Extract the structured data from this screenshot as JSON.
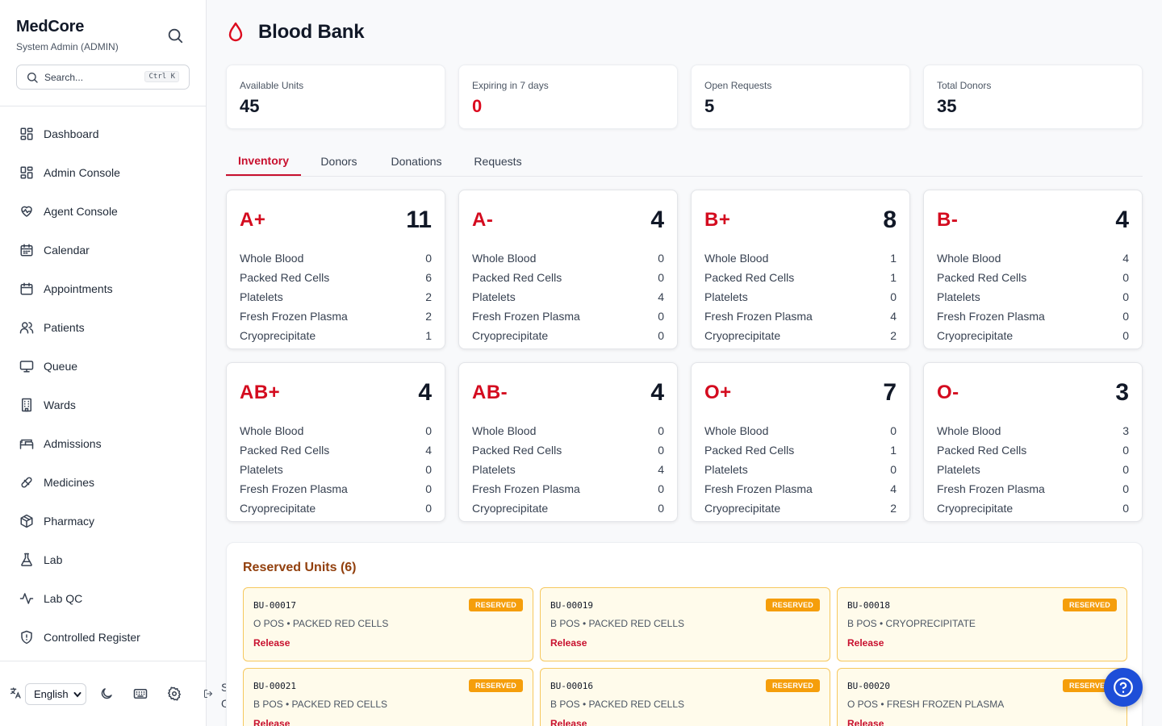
{
  "sidebar": {
    "brand": "MedCore",
    "user": "System Admin (ADMIN)",
    "search_placeholder": "Search...",
    "search_shortcut": "Ctrl K",
    "nav": [
      {
        "label": "Dashboard",
        "icon": "dashboard-icon"
      },
      {
        "label": "Admin Console",
        "icon": "dashboard-icon"
      },
      {
        "label": "Agent Console",
        "icon": "heart-pulse-icon"
      },
      {
        "label": "Calendar",
        "icon": "calendar-icon"
      },
      {
        "label": "Appointments",
        "icon": "calendar-icon"
      },
      {
        "label": "Patients",
        "icon": "users-icon"
      },
      {
        "label": "Queue",
        "icon": "monitor-icon"
      },
      {
        "label": "Wards",
        "icon": "building-icon"
      },
      {
        "label": "Admissions",
        "icon": "bed-icon"
      },
      {
        "label": "Medicines",
        "icon": "pill-icon"
      },
      {
        "label": "Pharmacy",
        "icon": "package-icon"
      },
      {
        "label": "Lab",
        "icon": "flask-icon"
      },
      {
        "label": "Lab QC",
        "icon": "activity-icon"
      },
      {
        "label": "Controlled Register",
        "icon": "shield-icon"
      }
    ],
    "footer": {
      "language": "English",
      "sign_out_line1": "Sign",
      "sign_out_line2": "Out"
    }
  },
  "page": {
    "title": "Blood Bank"
  },
  "stats": [
    {
      "label": "Available Units",
      "value": "45",
      "highlight": false
    },
    {
      "label": "Expiring in 7 days",
      "value": "0",
      "highlight": true
    },
    {
      "label": "Open Requests",
      "value": "5",
      "highlight": false
    },
    {
      "label": "Total Donors",
      "value": "35",
      "highlight": false
    }
  ],
  "tabs": [
    {
      "label": "Inventory",
      "active": true
    },
    {
      "label": "Donors",
      "active": false
    },
    {
      "label": "Donations",
      "active": false
    },
    {
      "label": "Requests",
      "active": false
    }
  ],
  "component_labels": [
    "Whole Blood",
    "Packed Red Cells",
    "Platelets",
    "Fresh Frozen Plasma",
    "Cryoprecipitate"
  ],
  "inventory": [
    {
      "type": "A+",
      "total": "11",
      "values": [
        "0",
        "6",
        "2",
        "2",
        "1"
      ]
    },
    {
      "type": "A-",
      "total": "4",
      "values": [
        "0",
        "0",
        "4",
        "0",
        "0"
      ]
    },
    {
      "type": "B+",
      "total": "8",
      "values": [
        "1",
        "1",
        "0",
        "4",
        "2"
      ]
    },
    {
      "type": "B-",
      "total": "4",
      "values": [
        "4",
        "0",
        "0",
        "0",
        "0"
      ]
    },
    {
      "type": "AB+",
      "total": "4",
      "values": [
        "0",
        "4",
        "0",
        "0",
        "0"
      ]
    },
    {
      "type": "AB-",
      "total": "4",
      "values": [
        "0",
        "0",
        "4",
        "0",
        "0"
      ]
    },
    {
      "type": "O+",
      "total": "7",
      "values": [
        "0",
        "1",
        "0",
        "4",
        "2"
      ]
    },
    {
      "type": "O-",
      "total": "3",
      "values": [
        "3",
        "0",
        "0",
        "0",
        "0"
      ]
    }
  ],
  "reserved": {
    "title": "Reserved Units (6)",
    "badge": "RESERVED",
    "release_label": "Release",
    "units": [
      {
        "id": "BU-00017",
        "desc": "O POS • PACKED RED CELLS"
      },
      {
        "id": "BU-00019",
        "desc": "B POS • PACKED RED CELLS"
      },
      {
        "id": "BU-00018",
        "desc": "B POS • CRYOPRECIPITATE"
      },
      {
        "id": "BU-00021",
        "desc": "B POS • PACKED RED CELLS"
      },
      {
        "id": "BU-00016",
        "desc": "B POS • PACKED RED CELLS"
      },
      {
        "id": "BU-00020",
        "desc": "O POS • FRESH FROZEN PLASMA"
      }
    ]
  },
  "colors": {
    "accent_red": "#d40b1f",
    "reserved_amber": "#f59e0b",
    "help_blue": "#1d4ed8"
  }
}
